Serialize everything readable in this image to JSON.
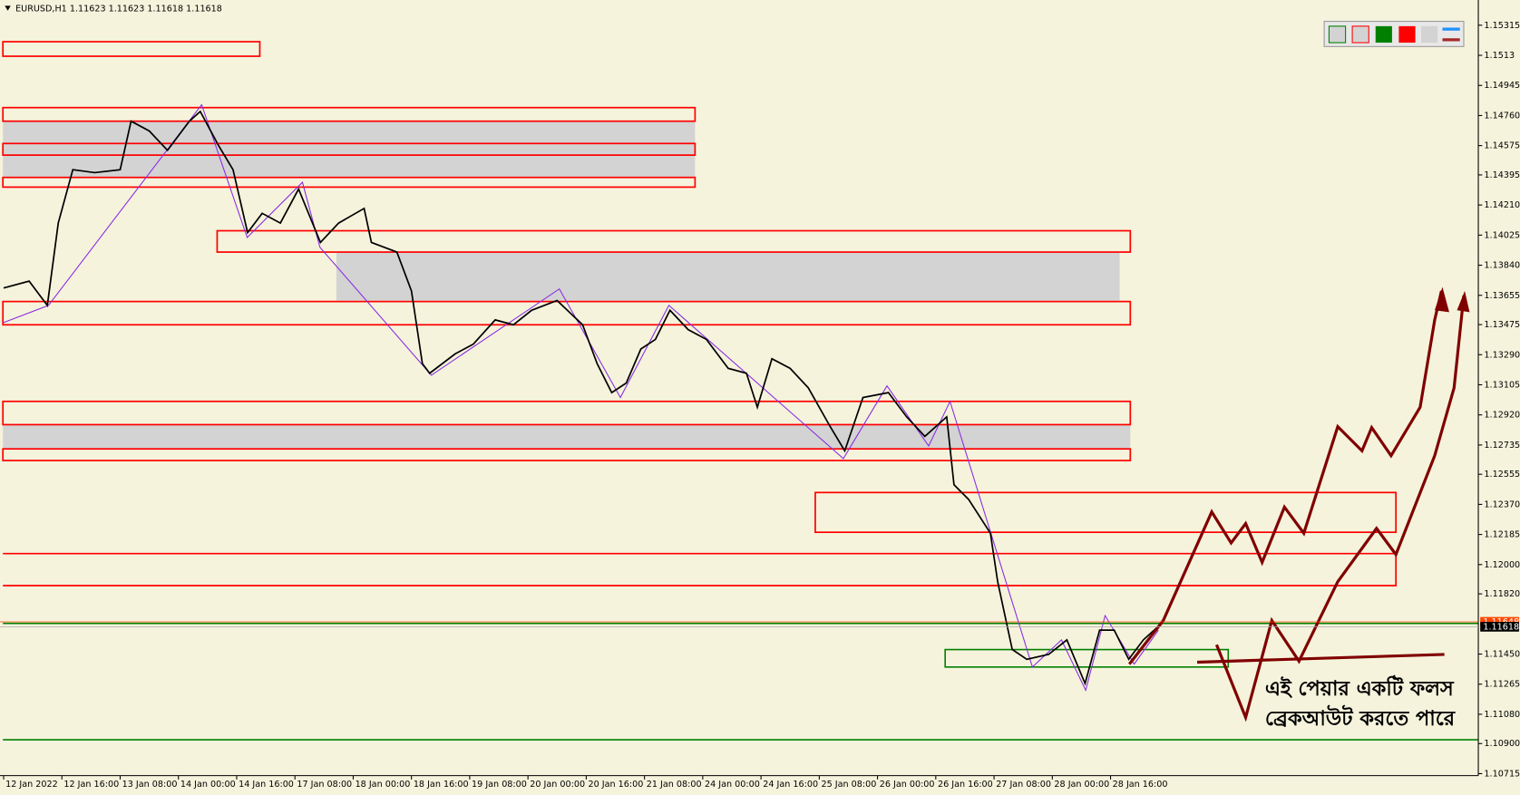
{
  "chart_data": {
    "type": "line",
    "title": "EURUSD,H1  1.11623 1.11623 1.11618 1.11618",
    "x": [
      0,
      7,
      12,
      15,
      19,
      25,
      32,
      35,
      40,
      45,
      51,
      54,
      59,
      63,
      67,
      71,
      76,
      81,
      87,
      92,
      99,
      101,
      108,
      112,
      115,
      117,
      124,
      129,
      135,
      140,
      145,
      152,
      159,
      163,
      167,
      171,
      175,
      179,
      183,
      188,
      193,
      199,
      204,
      207,
      211,
      216,
      221,
      227,
      231,
      236,
      243,
      248,
      253,
      259,
      261,
      265,
      271,
      273,
      277,
      281,
      287,
      292,
      297,
      301,
      305,
      309,
      313,
      317
    ],
    "series": [
      {
        "name": "EURUSD,H1",
        "color": "#000000",
        "values": [
          1.137,
          1.13742,
          1.13593,
          1.14099,
          1.14427,
          1.14409,
          1.14427,
          1.14725,
          1.14665,
          1.14546,
          1.14725,
          1.14785,
          1.14576,
          1.14427,
          1.1404,
          1.14159,
          1.14099,
          1.14308,
          1.1398,
          1.14099,
          1.14189,
          1.1398,
          1.13921,
          1.13682,
          1.13235,
          1.13176,
          1.13295,
          1.13355,
          1.13504,
          1.13474,
          1.13563,
          1.13623,
          1.13474,
          1.13235,
          1.13057,
          1.13116,
          1.13325,
          1.13384,
          1.13563,
          1.13444,
          1.13384,
          1.13206,
          1.13176,
          1.12967,
          1.13265,
          1.13206,
          1.13086,
          1.12848,
          1.12699,
          1.13027,
          1.13057,
          1.12908,
          1.12788,
          1.12908,
          1.12491,
          1.12401,
          1.12193,
          1.11895,
          1.11478,
          1.11418,
          1.11448,
          1.11537,
          1.11269,
          1.11597,
          1.11597,
          1.11418,
          1.11537,
          1.11618
        ]
      }
    ],
    "xlim": [
      -1,
      405
    ],
    "xticks": [
      {
        "value": 0,
        "label": "12 Jan 2022"
      },
      {
        "value": 16,
        "label": "12 Jan 16:00"
      },
      {
        "value": 32,
        "label": "13 Jan 08:00"
      },
      {
        "value": 48,
        "label": "14 Jan 00:00"
      },
      {
        "value": 64,
        "label": "14 Jan 16:00"
      },
      {
        "value": 80,
        "label": "17 Jan 08:00"
      },
      {
        "value": 96,
        "label": "18 Jan 00:00"
      },
      {
        "value": 112,
        "label": "18 Jan 16:00"
      },
      {
        "value": 128,
        "label": "19 Jan 08:00"
      },
      {
        "value": 144,
        "label": "20 Jan 00:00"
      },
      {
        "value": 160,
        "label": "20 Jan 16:00"
      },
      {
        "value": 176,
        "label": "21 Jan 08:00"
      },
      {
        "value": 192,
        "label": "24 Jan 00:00"
      },
      {
        "value": 208,
        "label": "24 Jan 16:00"
      },
      {
        "value": 224,
        "label": "25 Jan 08:00"
      },
      {
        "value": 240,
        "label": "26 Jan 00:00"
      },
      {
        "value": 256,
        "label": "26 Jan 16:00"
      },
      {
        "value": 272,
        "label": "27 Jan 08:00"
      },
      {
        "value": 288,
        "label": "28 Jan 00:00"
      },
      {
        "value": 304,
        "label": "28 Jan 16:00"
      }
    ],
    "ylim": [
      1.10703,
      1.1547
    ],
    "yticks": [
      1.15315,
      1.1513,
      {
        "value": 1.14945,
        "label": "1.14945"
      },
      {
        "value": 1.1476,
        "label": "1.14760"
      },
      1.14575,
      1.14395,
      {
        "value": 1.1421,
        "label": "1.14210"
      },
      1.14025,
      {
        "value": 1.1384,
        "label": "1.13840"
      },
      1.13655,
      1.13475,
      {
        "value": 1.1329,
        "label": "1.13290"
      },
      1.13105,
      {
        "value": 1.1292,
        "label": "1.12920"
      },
      1.12735,
      1.12555,
      {
        "value": 1.1237,
        "label": "1.12370"
      },
      1.12185,
      {
        "value": 1.12,
        "label": "1.12000"
      },
      {
        "value": 1.1182,
        "label": "1.11820"
      },
      {
        "value": 1.1145,
        "label": "1.11450"
      },
      1.11265,
      {
        "value": 1.1108,
        "label": "1.11080"
      },
      {
        "value": 1.109,
        "label": "1.10900"
      },
      1.10715
    ],
    "price_markers": [
      {
        "value": 1.11648,
        "color": "#ff4500"
      },
      {
        "value": 1.11618,
        "color": "#000000"
      }
    ],
    "annotation": [
      "এই পেয়ার একটি ফলস",
      "ব্রেকআউট করতে পারে"
    ]
  }
}
